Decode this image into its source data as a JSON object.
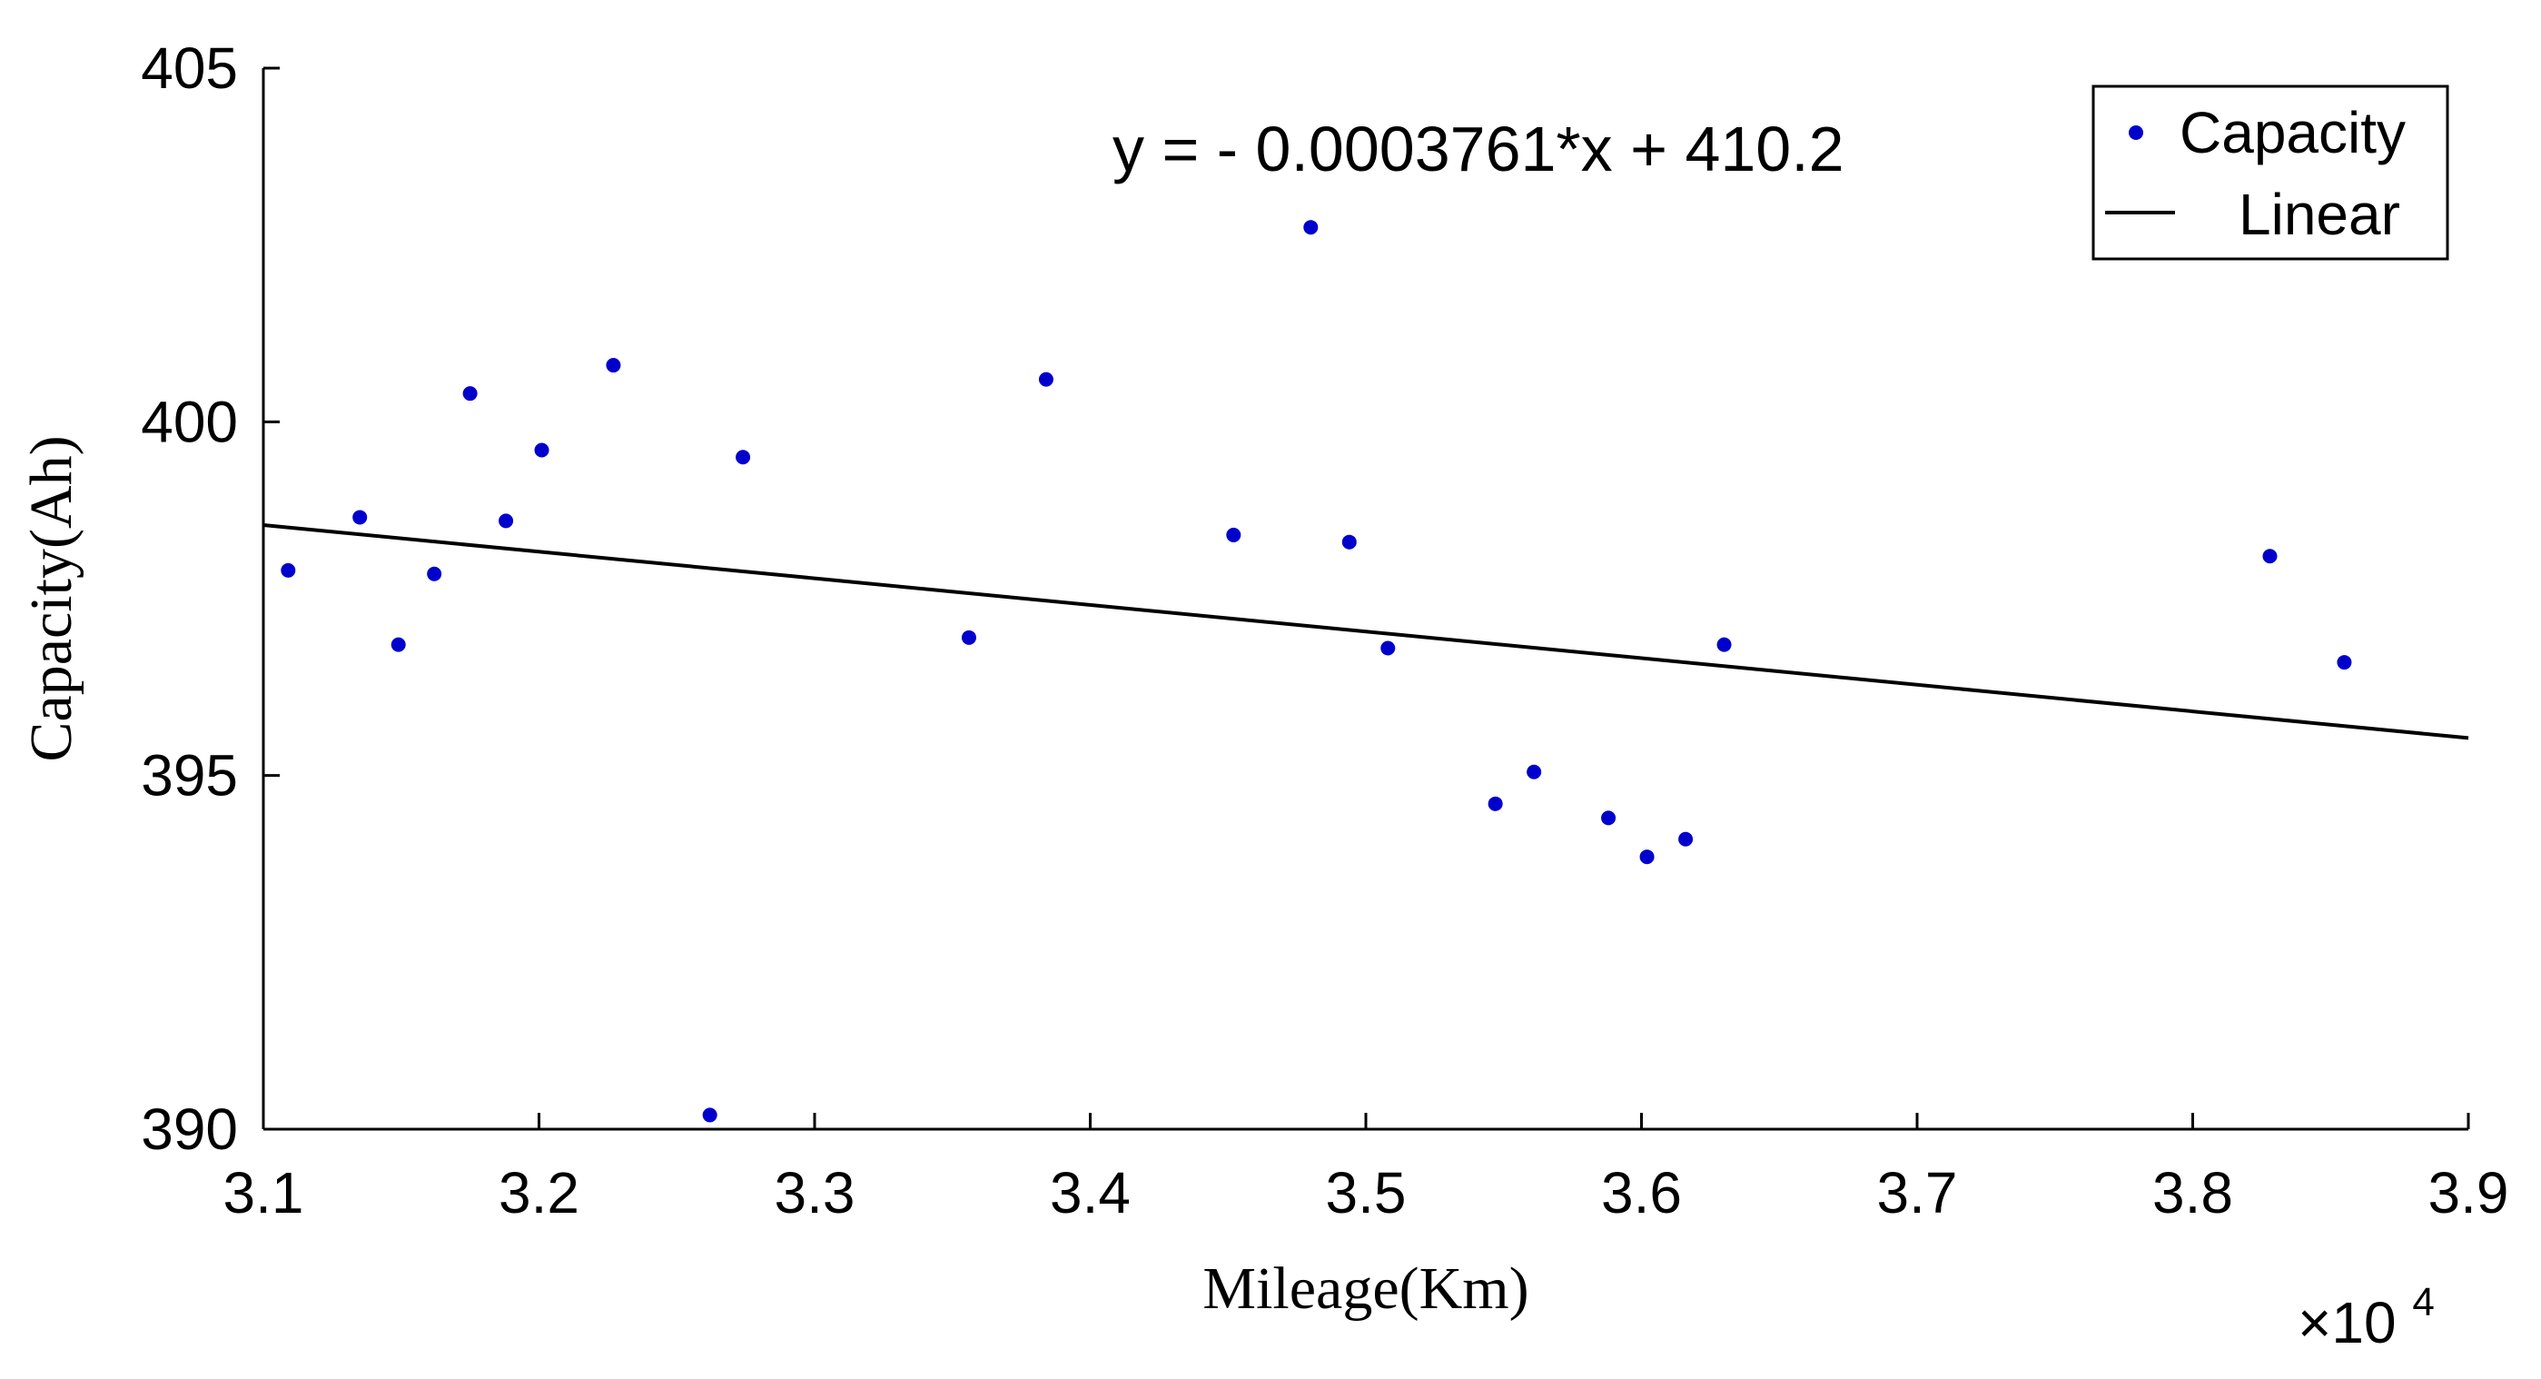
{
  "chart_data": {
    "type": "scatter",
    "title": "",
    "xlabel": "Mileage(Km)",
    "ylabel": "Capacity(Ah)",
    "x_exponent_label": {
      "base": "×10",
      "power": "4"
    },
    "xlim": [
      3.1,
      3.9
    ],
    "ylim": [
      390,
      405
    ],
    "x_ticks": [
      3.1,
      3.2,
      3.3,
      3.4,
      3.5,
      3.6,
      3.7,
      3.8,
      3.9
    ],
    "x_tick_labels": [
      "3.1",
      "3.2",
      "3.3",
      "3.4",
      "3.5",
      "3.6",
      "3.7",
      "3.8",
      "3.9"
    ],
    "y_ticks": [
      390,
      395,
      400,
      405
    ],
    "y_tick_labels": [
      "390",
      "395",
      "400",
      "405"
    ],
    "grid": false,
    "legend_position": "top-right",
    "annotation": "y = - 0.0003761*x + 410.2",
    "series": [
      {
        "name": "Capacity",
        "kind": "points",
        "color": "#0000cc",
        "points": [
          {
            "x": 3.109,
            "y": 397.9
          },
          {
            "x": 3.135,
            "y": 398.65
          },
          {
            "x": 3.149,
            "y": 396.85
          },
          {
            "x": 3.162,
            "y": 397.85
          },
          {
            "x": 3.175,
            "y": 400.4
          },
          {
            "x": 3.188,
            "y": 398.6
          },
          {
            "x": 3.201,
            "y": 399.6
          },
          {
            "x": 3.227,
            "y": 400.8
          },
          {
            "x": 3.262,
            "y": 390.2
          },
          {
            "x": 3.274,
            "y": 399.5
          },
          {
            "x": 3.356,
            "y": 396.95
          },
          {
            "x": 3.384,
            "y": 400.6
          },
          {
            "x": 3.452,
            "y": 398.4
          },
          {
            "x": 3.48,
            "y": 402.75
          },
          {
            "x": 3.494,
            "y": 398.3
          },
          {
            "x": 3.508,
            "y": 396.8
          },
          {
            "x": 3.547,
            "y": 394.6
          },
          {
            "x": 3.561,
            "y": 395.05
          },
          {
            "x": 3.588,
            "y": 394.4
          },
          {
            "x": 3.602,
            "y": 393.85
          },
          {
            "x": 3.616,
            "y": 394.1
          },
          {
            "x": 3.63,
            "y": 396.85
          },
          {
            "x": 3.828,
            "y": 398.1
          },
          {
            "x": 3.855,
            "y": 396.6
          }
        ]
      },
      {
        "name": "Linear",
        "kind": "line",
        "color": "#000000",
        "points": [
          {
            "x": 3.1,
            "y": 398.54
          },
          {
            "x": 3.9,
            "y": 395.53
          }
        ]
      }
    ]
  }
}
